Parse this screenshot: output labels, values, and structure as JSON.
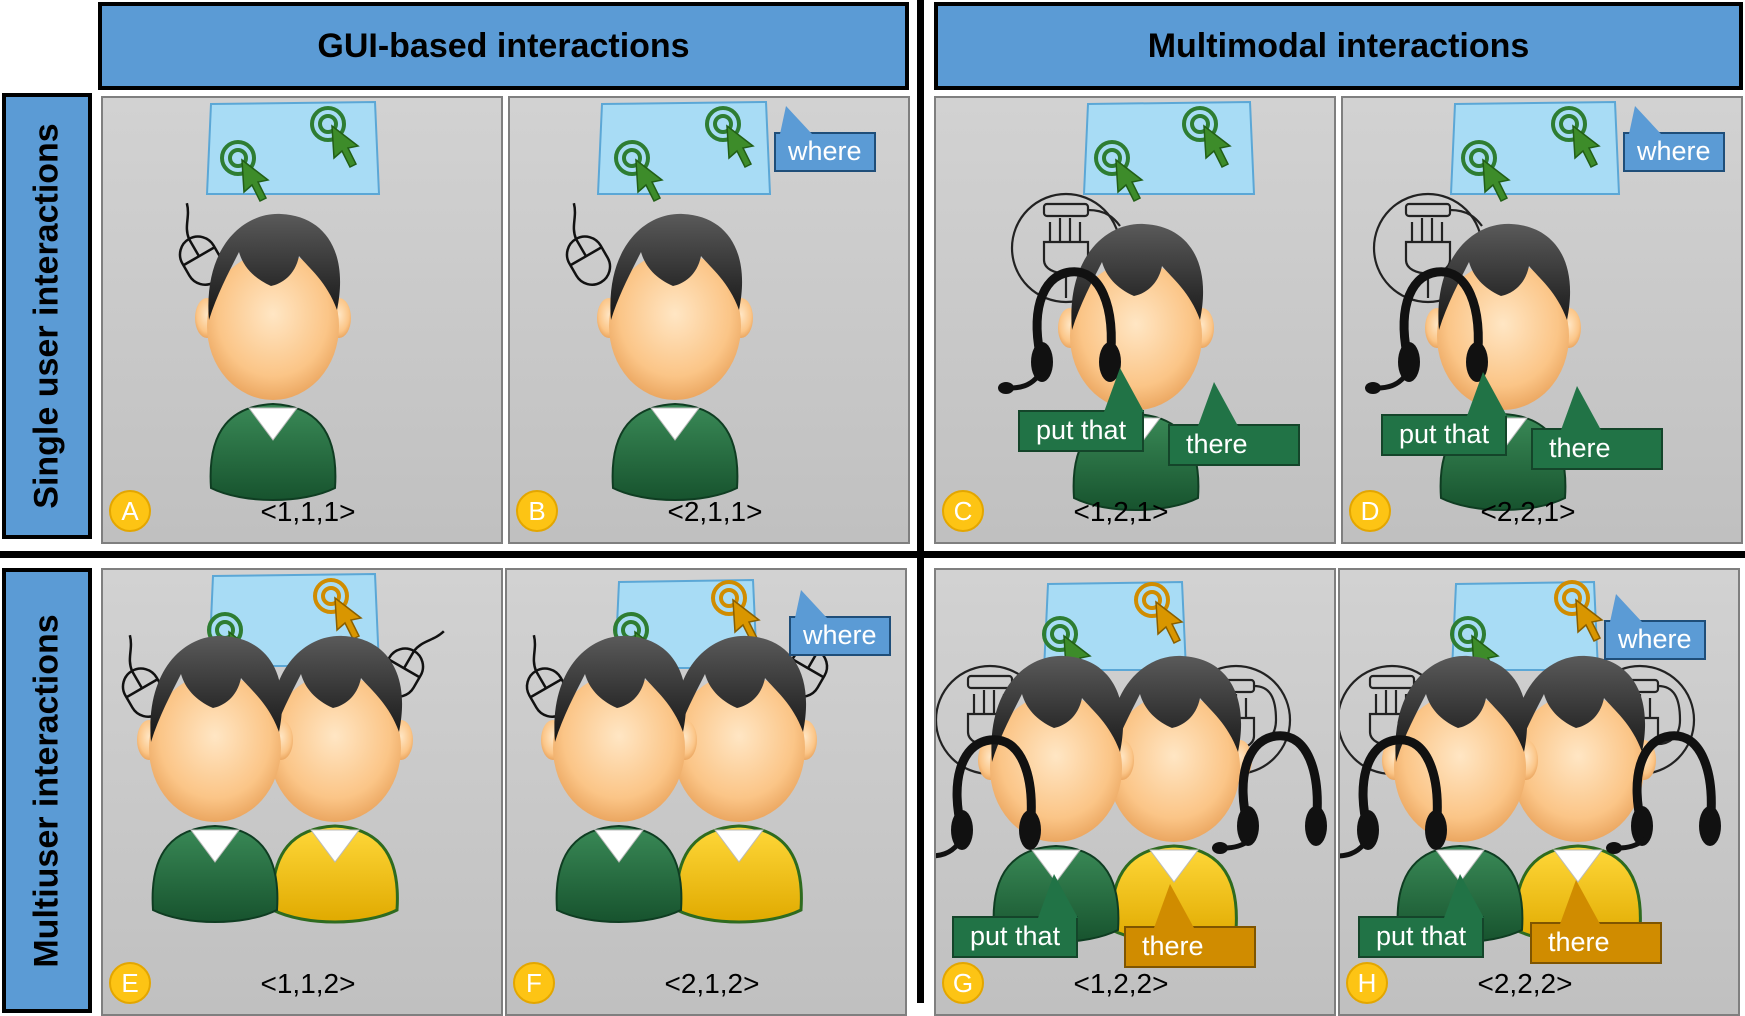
{
  "columns": {
    "gui": "GUI-based interactions",
    "multimodal": "Multimodal interactions"
  },
  "rows": {
    "single": "Single user interactions",
    "multi": "Multiuser interactions"
  },
  "panels": [
    {
      "letter": "A",
      "tuple": "<1,1,1>"
    },
    {
      "letter": "B",
      "tuple": "<2,1,1>",
      "where": "where"
    },
    {
      "letter": "C",
      "tuple": "<1,2,1>",
      "speech1": "put that",
      "speech2": "there"
    },
    {
      "letter": "D",
      "tuple": "<2,2,1>",
      "speech1": "put that",
      "speech2": "there",
      "where": "where"
    },
    {
      "letter": "E",
      "tuple": "<1,1,2>"
    },
    {
      "letter": "F",
      "tuple": "<2,1,2>",
      "where": "where"
    },
    {
      "letter": "G",
      "tuple": "<1,2,2>",
      "speech1": "put that",
      "speech2": "there"
    },
    {
      "letter": "H",
      "tuple": "<2,2,2>",
      "speech1": "put that",
      "speech2": "there",
      "where": "where"
    }
  ],
  "colors": {
    "header": "#5b9bd5",
    "user1": "#217346",
    "user2": "#f5c400",
    "cursor_user2": "#d08c00",
    "screen": "#a8dcf5"
  }
}
